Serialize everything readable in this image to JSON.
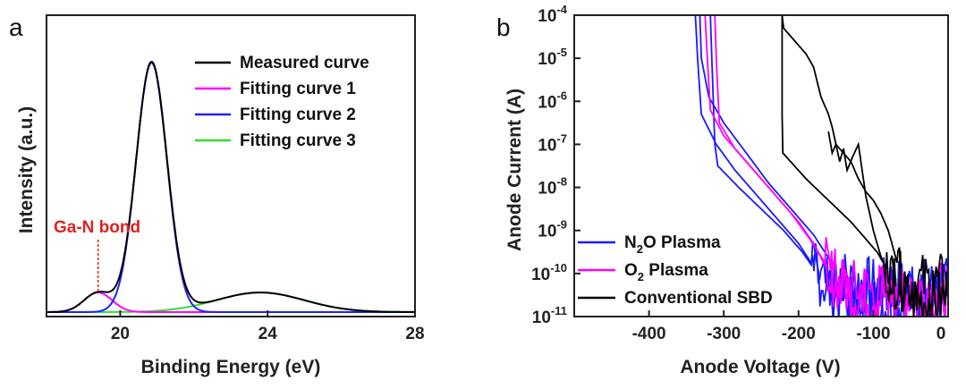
{
  "chart_data": [
    {
      "panel": "a",
      "type": "line",
      "xlabel": "Binding Energy (eV)",
      "ylabel": "Intensity (a.u.)",
      "xlim": [
        18,
        28
      ],
      "ylim": [
        0,
        1.0
      ],
      "xticks": [
        "20",
        "24",
        "28"
      ],
      "xtick_values": [
        20,
        24,
        28
      ],
      "legend_position": "top-right",
      "annotation": {
        "text": "Ga-N bond",
        "x": 19.4,
        "color": "#e02020"
      },
      "series": [
        {
          "name": "Measured curve",
          "color": "#000000",
          "components": [
            [
              19.4,
              0.075,
              0.38
            ],
            [
              20.85,
              0.955,
              0.42
            ],
            [
              23.8,
              0.075,
              1.2
            ]
          ]
        },
        {
          "name": "Fitting curve 1",
          "color": "#ff00ff",
          "components": [
            [
              19.4,
              0.075,
              0.38
            ]
          ]
        },
        {
          "name": "Fitting curve 2",
          "color": "#2020ff",
          "components": [
            [
              20.85,
              0.955,
              0.42
            ]
          ]
        },
        {
          "name": "Fitting curve 3",
          "color": "#33dd33",
          "components": [
            [
              23.8,
              0.075,
              1.2
            ]
          ]
        }
      ]
    },
    {
      "panel": "b",
      "type": "line",
      "xlabel": "Anode Voltage (V)",
      "ylabel": "Anode Current (A)",
      "xlim": [
        -500,
        0
      ],
      "ylim_log10": [
        -11,
        -4
      ],
      "xticks": [
        "-400",
        "-300",
        "-200",
        "-100",
        "0"
      ],
      "xtick_values": [
        -400,
        -300,
        -200,
        -100,
        0
      ],
      "yticks": [
        {
          "base": "10",
          "exp": "-4",
          "value": -4
        },
        {
          "base": "10",
          "exp": "-5",
          "value": -5
        },
        {
          "base": "10",
          "exp": "-6",
          "value": -6
        },
        {
          "base": "10",
          "exp": "-7",
          "value": -7
        },
        {
          "base": "10",
          "exp": "-8",
          "value": -8
        },
        {
          "base": "10",
          "exp": "-9",
          "value": -9
        },
        {
          "base": "10",
          "exp": "-10",
          "value": -10
        },
        {
          "base": "10",
          "exp": "-11",
          "value": -11
        }
      ],
      "legend_position": "bottom-left",
      "series": [
        {
          "name": "N2O Plasma",
          "label_main": "N",
          "label_sub": "2",
          "label_rest": "O Plasma",
          "color": "#1a1aff",
          "curves": [
            [
              [
                -332,
                -4
              ],
              [
                -330,
                -5
              ],
              [
                -320,
                -5.9
              ],
              [
                -300,
                -6.5
              ],
              [
                -270,
                -7.2
              ],
              [
                -240,
                -7.9
              ],
              [
                -210,
                -8.5
              ],
              [
                -180,
                -9.1
              ],
              [
                -165,
                -9.5
              ],
              [
                -150,
                -9.9
              ],
              [
                -130,
                -10.2
              ],
              [
                -100,
                -10.3
              ],
              [
                -60,
                -10.3
              ],
              [
                -20,
                -10.3
              ],
              [
                0,
                -10.3
              ]
            ],
            [
              [
                -318,
                -4
              ],
              [
                -316,
                -5
              ],
              [
                -314,
                -6
              ],
              [
                -312,
                -7
              ],
              [
                -308,
                -7.5
              ],
              [
                -280,
                -8
              ],
              [
                -250,
                -8.5
              ],
              [
                -220,
                -9.0
              ],
              [
                -195,
                -9.5
              ],
              [
                -175,
                -10.0
              ],
              [
                -160,
                -10.4
              ],
              [
                -140,
                -10.6
              ],
              [
                -100,
                -10.7
              ],
              [
                -40,
                -10.6
              ],
              [
                0,
                -10.6
              ]
            ],
            [
              [
                -338,
                -4
              ],
              [
                -335,
                -5
              ],
              [
                -330,
                -6.3
              ],
              [
                -310,
                -7
              ],
              [
                -285,
                -7.6
              ],
              [
                -255,
                -8.2
              ],
              [
                -225,
                -8.8
              ],
              [
                -200,
                -9.3
              ],
              [
                -185,
                -9.7
              ],
              [
                -170,
                -10.2
              ],
              [
                -150,
                -10.5
              ],
              [
                -120,
                -10.5
              ],
              [
                -80,
                -10.4
              ],
              [
                0,
                -10.4
              ]
            ]
          ]
        },
        {
          "name": "O2 Plasma",
          "label_main": "O",
          "label_sub": "2",
          "label_rest": " Plasma",
          "color": "#ff00ff",
          "curves": [
            [
              [
                -325,
                -4
              ],
              [
                -322,
                -5
              ],
              [
                -318,
                -6.2
              ],
              [
                -300,
                -6.8
              ],
              [
                -270,
                -7.4
              ],
              [
                -240,
                -8.0
              ],
              [
                -210,
                -8.6
              ],
              [
                -185,
                -9.2
              ],
              [
                -170,
                -9.6
              ],
              [
                -155,
                -10.0
              ],
              [
                -140,
                -10.3
              ],
              [
                -100,
                -10.4
              ],
              [
                -50,
                -10.4
              ],
              [
                0,
                -10.4
              ]
            ],
            [
              [
                -312,
                -4
              ],
              [
                -310,
                -5
              ],
              [
                -306,
                -6.5
              ],
              [
                -285,
                -7.1
              ],
              [
                -260,
                -7.6
              ],
              [
                -230,
                -8.2
              ],
              [
                -200,
                -8.8
              ],
              [
                -180,
                -9.3
              ],
              [
                -165,
                -9.8
              ],
              [
                -150,
                -10.2
              ],
              [
                -120,
                -10.5
              ],
              [
                -60,
                -10.5
              ],
              [
                0,
                -10.5
              ]
            ]
          ]
        },
        {
          "name": "Conventional SBD",
          "label_main": "Conventional SBD",
          "label_sub": "",
          "label_rest": "",
          "color": "#000000",
          "curves": [
            [
              [
                -222,
                -4
              ],
              [
                -220,
                -4.3
              ],
              [
                -205,
                -4.6
              ],
              [
                -190,
                -4.9
              ],
              [
                -180,
                -5.2
              ],
              [
                -170,
                -5.9
              ],
              [
                -160,
                -6.3
              ],
              [
                -155,
                -6.6
              ],
              [
                -150,
                -7.0
              ],
              [
                -140,
                -7.2
              ],
              [
                -130,
                -7.4
              ],
              [
                -120,
                -7.8
              ],
              [
                -110,
                -8.1
              ],
              [
                -100,
                -8.3
              ],
              [
                -90,
                -8.6
              ],
              [
                -80,
                -9.0
              ],
              [
                -72,
                -9.5
              ],
              [
                -65,
                -10.0
              ],
              [
                -60,
                -10.5
              ],
              [
                -50,
                -10.6
              ],
              [
                0,
                -10.6
              ]
            ],
            [
              [
                -222,
                -4
              ],
              [
                -222,
                -5.4
              ],
              [
                -222,
                -6.3
              ],
              [
                -221,
                -7.2
              ],
              [
                -190,
                -7.8
              ],
              [
                -160,
                -8.3
              ],
              [
                -130,
                -8.8
              ],
              [
                -110,
                -9.2
              ],
              [
                -95,
                -9.5
              ],
              [
                -85,
                -9.8
              ],
              [
                -75,
                -10.1
              ],
              [
                -60,
                -10.2
              ],
              [
                -30,
                -10.2
              ],
              [
                0,
                -10.2
              ]
            ],
            [
              [
                -160,
                -6.7
              ],
              [
                -155,
                -7.2
              ],
              [
                -150,
                -7.0
              ],
              [
                -145,
                -7.4
              ],
              [
                -140,
                -7.1
              ],
              [
                -135,
                -7.6
              ],
              [
                -128,
                -7.3
              ],
              [
                -120,
                -7.0
              ],
              [
                -110,
                -8.2
              ],
              [
                -100,
                -9.0
              ],
              [
                -90,
                -9.6
              ],
              [
                -80,
                -10.0
              ],
              [
                -70,
                -10.3
              ]
            ]
          ]
        }
      ]
    }
  ]
}
